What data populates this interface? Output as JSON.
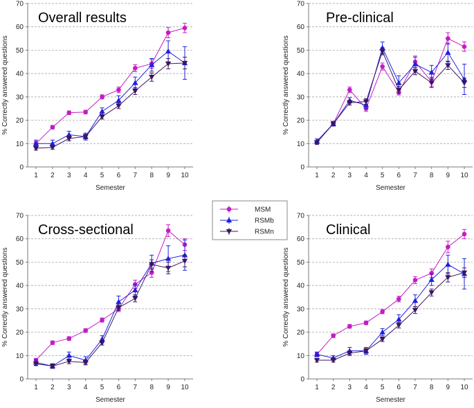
{
  "colors": {
    "MSM": "#c41cc4",
    "RSMb": "#1f1fe0",
    "RSMn": "#3a1660",
    "grid": "#9a9a9a",
    "axis": "#7a7a7a"
  },
  "legend": {
    "items": [
      {
        "name": "MSM",
        "marker": "circle"
      },
      {
        "name": "RSMb",
        "marker": "triangle-up"
      },
      {
        "name": "RSMn",
        "marker": "triangle-down"
      }
    ]
  },
  "chart_data": [
    {
      "type": "line",
      "title": "Overall results",
      "xlabel": "Semester",
      "ylabel": "% Correctly answered questions",
      "x": [
        1,
        2,
        3,
        4,
        5,
        6,
        7,
        8,
        9,
        10
      ],
      "ylim": [
        0,
        70
      ],
      "yticks": [
        0,
        10,
        20,
        30,
        40,
        50,
        60,
        70
      ],
      "grid": "horizontal-dashed",
      "series": [
        {
          "name": "MSM",
          "values": [
            10,
            17,
            23.2,
            23.5,
            30,
            33,
            42.3,
            44.2,
            57.5,
            59.5
          ],
          "err": [
            1,
            0.8,
            0.8,
            0.8,
            0.9,
            1.2,
            1.5,
            2,
            2.2,
            2
          ]
        },
        {
          "name": "RSMb",
          "values": [
            10,
            10,
            13.8,
            13,
            23.8,
            28.5,
            36,
            43.7,
            49.5,
            44.5
          ],
          "err": [
            1.5,
            1.5,
            1.5,
            1.5,
            1.5,
            2,
            2.5,
            2.7,
            4.5,
            7
          ]
        },
        {
          "name": "RSMn",
          "values": [
            8,
            8.4,
            12.2,
            13,
            21.5,
            26.2,
            32.5,
            38.5,
            44.2,
            44.5
          ],
          "err": [
            0.8,
            0.8,
            1,
            1,
            1,
            1.2,
            1.5,
            1.8,
            2.2,
            2.5
          ]
        }
      ]
    },
    {
      "type": "line",
      "title": "Pre-clinical",
      "xlabel": "Semester",
      "ylabel": "% Correctly answered questions",
      "x": [
        1,
        2,
        3,
        4,
        5,
        6,
        7,
        8,
        9,
        10
      ],
      "ylim": [
        0,
        70
      ],
      "yticks": [
        0,
        10,
        20,
        30,
        40,
        50,
        60,
        70
      ],
      "grid": "horizontal-dashed",
      "series": [
        {
          "name": "MSM",
          "values": [
            10.5,
            18.5,
            33,
            25,
            43,
            32,
            45,
            36.5,
            55,
            51.5
          ],
          "err": [
            0.8,
            1,
            1.2,
            1.2,
            1.5,
            1.2,
            2.5,
            2,
            2.5,
            2
          ]
        },
        {
          "name": "RSMb",
          "values": [
            11,
            18.5,
            28.5,
            26.5,
            51,
            36,
            44,
            40.5,
            49,
            37.5
          ],
          "err": [
            1,
            1,
            1.2,
            1.5,
            2.5,
            3,
            3,
            3,
            4,
            6.5
          ]
        },
        {
          "name": "RSMn",
          "values": [
            10.5,
            18.5,
            27.5,
            28,
            49.5,
            33,
            41,
            36,
            43.5,
            36
          ],
          "err": [
            0.8,
            0.8,
            1,
            1.2,
            1.5,
            1.5,
            1.5,
            2,
            1.8,
            2
          ]
        }
      ]
    },
    {
      "type": "line",
      "title": "Cross-sectional",
      "xlabel": "Semester",
      "ylabel": "% Correctly answered questions",
      "x": [
        1,
        2,
        3,
        4,
        5,
        6,
        7,
        8,
        9,
        10
      ],
      "ylim": [
        0,
        70
      ],
      "yticks": [
        0,
        10,
        20,
        30,
        40,
        50,
        60,
        70
      ],
      "grid": "horizontal-dashed",
      "series": [
        {
          "name": "MSM",
          "values": [
            8,
            15.5,
            17.3,
            20.7,
            25.2,
            30,
            40.5,
            45.5,
            63.5,
            57.5
          ],
          "err": [
            0.8,
            0.8,
            0.8,
            0.8,
            0.9,
            1.2,
            1.8,
            2,
            2.5,
            2.5
          ]
        },
        {
          "name": "RSMb",
          "values": [
            7,
            5.5,
            10,
            8,
            17,
            33,
            38,
            49.5,
            51.5,
            53
          ],
          "err": [
            1.2,
            1,
            1.5,
            1.5,
            1.5,
            2.5,
            2.5,
            3.5,
            5.5,
            6.5
          ]
        },
        {
          "name": "RSMn",
          "values": [
            6.5,
            5.5,
            7.5,
            7,
            15.5,
            30.5,
            34.5,
            49,
            47.5,
            50.5
          ],
          "err": [
            0.8,
            0.8,
            1,
            1,
            1,
            1.2,
            1.5,
            2,
            2.5,
            2.5
          ]
        }
      ]
    },
    {
      "type": "line",
      "title": "Clinical",
      "xlabel": "Semester",
      "ylabel": "% Correctly answered questions",
      "x": [
        1,
        2,
        3,
        4,
        5,
        6,
        7,
        8,
        9,
        10
      ],
      "ylim": [
        0,
        70
      ],
      "yticks": [
        0,
        10,
        20,
        30,
        40,
        50,
        60,
        70
      ],
      "grid": "horizontal-dashed",
      "series": [
        {
          "name": "MSM",
          "values": [
            10.5,
            18.5,
            22.5,
            24,
            28.8,
            34.2,
            42.3,
            45.3,
            56.5,
            62
          ],
          "err": [
            0.8,
            0.8,
            0.8,
            0.8,
            0.9,
            1.2,
            1.5,
            1.8,
            2.5,
            2
          ]
        },
        {
          "name": "RSMb",
          "values": [
            10.5,
            9,
            12,
            12,
            20,
            25.5,
            33.5,
            42.5,
            49,
            45
          ],
          "err": [
            1,
            1,
            1.5,
            1.5,
            1.5,
            2,
            2.5,
            2.5,
            4,
            6.5
          ]
        },
        {
          "name": "RSMn",
          "values": [
            8,
            8,
            11,
            12,
            17,
            23,
            29.5,
            37,
            43.5,
            45.5
          ],
          "err": [
            0.8,
            0.8,
            1,
            1,
            1,
            1.2,
            1.5,
            1.5,
            2,
            2
          ]
        }
      ]
    }
  ]
}
